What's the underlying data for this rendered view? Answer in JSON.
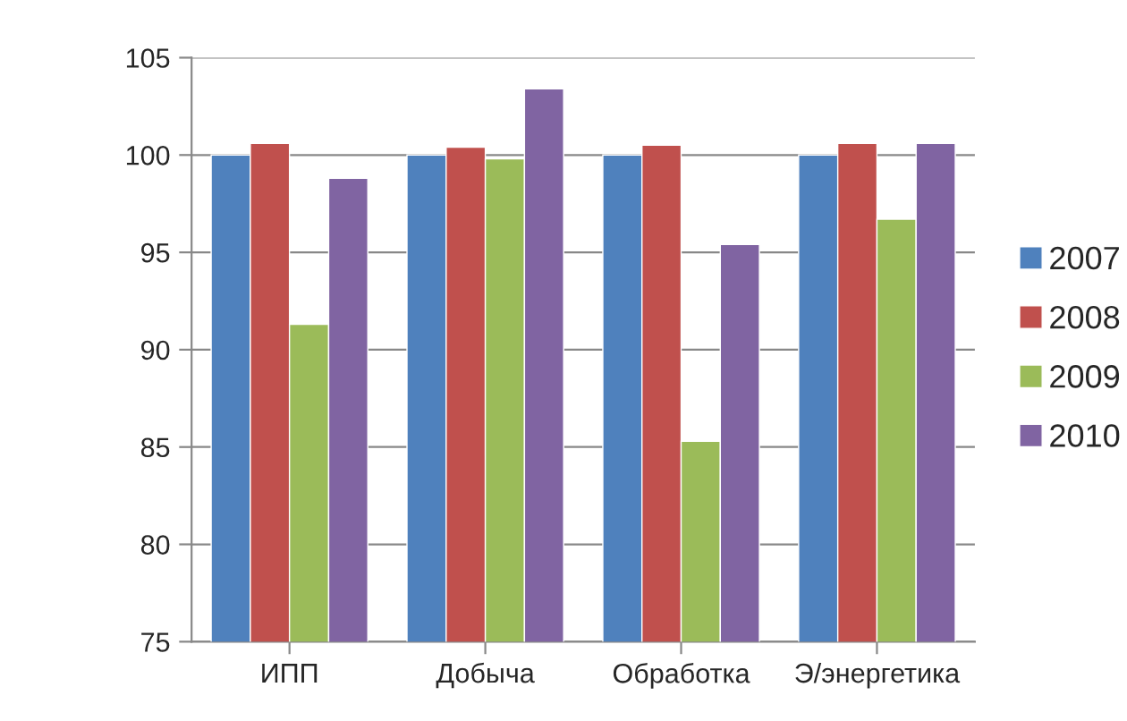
{
  "chart_data": {
    "type": "bar",
    "categories": [
      "ИПП",
      "Добыча",
      "Обработка",
      "Э/энергетика"
    ],
    "series": [
      {
        "name": "2007",
        "color": "#4f81bd",
        "values": [
          100,
          100,
          100,
          100
        ]
      },
      {
        "name": "2008",
        "color": "#c0504d",
        "values": [
          100.6,
          100.4,
          100.5,
          100.6
        ]
      },
      {
        "name": "2009",
        "color": "#9bbb59",
        "values": [
          91.3,
          99.8,
          85.3,
          96.7
        ]
      },
      {
        "name": "2010",
        "color": "#8064a2",
        "values": [
          98.8,
          103.4,
          95.4,
          100.6
        ]
      }
    ],
    "ylim": [
      75,
      105
    ],
    "yticks": [
      75,
      80,
      85,
      90,
      95,
      100,
      105
    ],
    "grid": "y",
    "legend": "right"
  }
}
